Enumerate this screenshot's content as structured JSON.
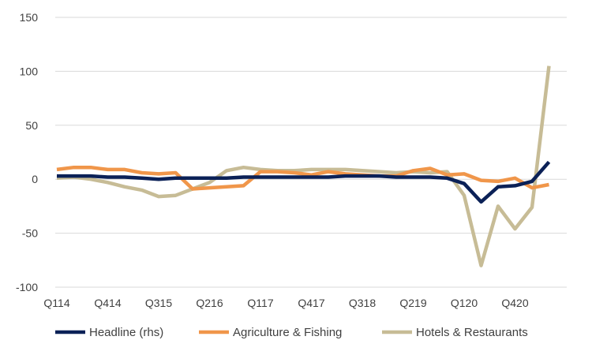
{
  "chart_data": {
    "type": "line",
    "ylim": [
      -100,
      150
    ],
    "yticks": [
      -100,
      -50,
      0,
      50,
      100,
      150
    ],
    "grid": true,
    "legend": "bottom",
    "x": [
      "Q114",
      "Q214",
      "Q314",
      "Q414",
      "Q115",
      "Q215",
      "Q315",
      "Q415",
      "Q116",
      "Q216",
      "Q316",
      "Q416",
      "Q117",
      "Q217",
      "Q317",
      "Q417",
      "Q118",
      "Q218",
      "Q318",
      "Q418",
      "Q119",
      "Q219",
      "Q319",
      "Q419",
      "Q120",
      "Q220",
      "Q320",
      "Q420",
      "Q121",
      "Q221"
    ],
    "xtick_labels": [
      "Q114",
      "Q414",
      "Q315",
      "Q216",
      "Q117",
      "Q417",
      "Q318",
      "Q219",
      "Q120",
      "Q420"
    ],
    "series": [
      {
        "name": "Headline (rhs)",
        "color": "#0b2157",
        "values": [
          3,
          3,
          3,
          2,
          2,
          1,
          0,
          1,
          1,
          1,
          1,
          2,
          2,
          2,
          2,
          2,
          2,
          3,
          3,
          3,
          2,
          2,
          2,
          1,
          -4,
          -21,
          -7,
          -6,
          -2,
          16
        ]
      },
      {
        "name": "Agriculture & Fishing",
        "color": "#f0964a",
        "values": [
          9,
          11,
          11,
          9,
          9,
          6,
          5,
          6,
          -9,
          -8,
          -7,
          -6,
          7,
          7,
          6,
          4,
          7,
          5,
          4,
          3,
          3,
          8,
          10,
          4,
          5,
          -1,
          -2,
          1,
          -8,
          -5
        ]
      },
      {
        "name": "Hotels & Restaurants",
        "color": "#c7bc96",
        "values": [
          1,
          2,
          0,
          -3,
          -7,
          -10,
          -16,
          -15,
          -9,
          -3,
          8,
          11,
          9,
          8,
          8,
          9,
          9,
          9,
          8,
          7,
          6,
          7,
          6,
          7,
          -15,
          -80,
          -25,
          -46,
          -26,
          105
        ]
      }
    ]
  }
}
